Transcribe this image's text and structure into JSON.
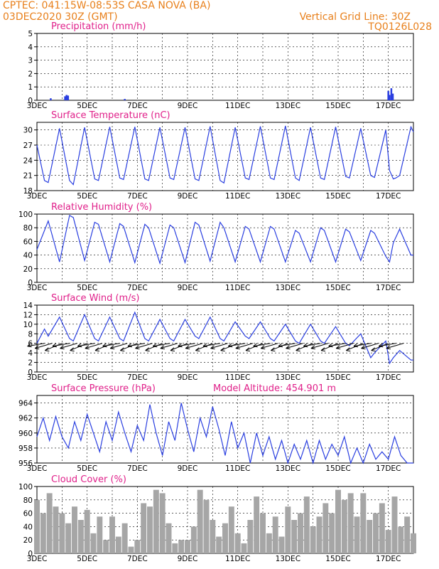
{
  "header": {
    "line1": "CPTEC:   041:15W-08:53S   CASA NOVA (BA)",
    "line2": "03DEC2020 30Z (GMT)",
    "grid_note": "Vertical Grid Line: 30Z",
    "code": "TQ0126L028"
  },
  "colors": {
    "header": "#e8801c",
    "title": "#e0208a",
    "line": "#2a3fe0",
    "cloud": "#a6a6a6",
    "wind_barb": "#000000"
  },
  "x_labels": [
    "3DEC",
    "5DEC",
    "7DEC",
    "9DEC",
    "11DEC",
    "13DEC",
    "15DEC",
    "17DEC"
  ],
  "chart_data": [
    {
      "type": "bar",
      "title": "Precipitation (mm/h)",
      "ylim": [
        0,
        5
      ],
      "yticks": [
        0,
        1,
        2,
        3,
        4,
        5
      ],
      "grid": true,
      "x": [
        3.55,
        4.12,
        4.18,
        4.24,
        6.5,
        17.0,
        17.05,
        17.12,
        17.18
      ],
      "values": [
        0.15,
        0.3,
        0.4,
        0.35,
        0.1,
        0.7,
        0.4,
        0.9,
        0.5
      ]
    },
    {
      "type": "line",
      "title": "Surface Temperature (nC)",
      "ylim": [
        18,
        31.5
      ],
      "yticks": [
        18,
        21,
        24,
        27,
        30
      ],
      "grid": true,
      "x": [
        3.0,
        3.3,
        3.45,
        3.9,
        4.3,
        4.45,
        4.9,
        5.3,
        5.45,
        5.9,
        6.3,
        6.45,
        6.9,
        7.3,
        7.45,
        7.9,
        8.3,
        8.45,
        8.9,
        9.3,
        9.45,
        9.9,
        10.3,
        10.45,
        10.9,
        11.3,
        11.45,
        11.9,
        12.3,
        12.45,
        12.9,
        13.3,
        13.45,
        13.9,
        14.3,
        14.45,
        14.9,
        15.3,
        15.45,
        15.9,
        16.3,
        16.45,
        16.9,
        17.05,
        17.2,
        17.3,
        17.45,
        17.9,
        18.0
      ],
      "y": [
        27.0,
        20.0,
        19.6,
        30.3,
        20.0,
        19.2,
        30.5,
        20.3,
        20.0,
        30.6,
        20.5,
        20.2,
        30.6,
        20.3,
        20.0,
        30.5,
        20.5,
        20.2,
        30.5,
        20.3,
        20.0,
        30.7,
        20.0,
        19.5,
        30.5,
        20.5,
        20.2,
        30.7,
        20.5,
        20.2,
        30.8,
        20.5,
        20.0,
        30.5,
        20.5,
        20.2,
        30.6,
        20.8,
        20.5,
        30.3,
        21.0,
        20.6,
        30.0,
        22.0,
        20.3,
        20.5,
        21.0,
        30.6,
        29.6
      ]
    },
    {
      "type": "line",
      "title": "Relative Humidity (%)",
      "ylim": [
        0,
        100
      ],
      "yticks": [
        0,
        20,
        40,
        60,
        80,
        100
      ],
      "grid": true,
      "x": [
        3.0,
        3.45,
        3.9,
        4.3,
        4.45,
        4.9,
        5.3,
        5.45,
        5.9,
        6.3,
        6.45,
        6.9,
        7.3,
        7.45,
        7.9,
        8.3,
        8.45,
        8.9,
        9.3,
        9.45,
        9.9,
        10.3,
        10.45,
        10.9,
        11.3,
        11.45,
        11.9,
        12.3,
        12.45,
        12.9,
        13.3,
        13.45,
        13.9,
        14.3,
        14.45,
        14.9,
        15.3,
        15.45,
        15.9,
        16.3,
        16.45,
        16.9,
        17.05,
        17.2,
        17.45,
        17.9,
        18.0
      ],
      "y": [
        48,
        90,
        30,
        98,
        95,
        32,
        88,
        85,
        30,
        86,
        82,
        29,
        85,
        80,
        28,
        84,
        80,
        29,
        88,
        84,
        31,
        88,
        80,
        30,
        82,
        78,
        30,
        82,
        78,
        30,
        76,
        72,
        30,
        80,
        76,
        30,
        78,
        74,
        32,
        76,
        72,
        38,
        30,
        58,
        78,
        40,
        40
      ]
    },
    {
      "type": "line",
      "title": "Surface Wind (m/s)",
      "ylim": [
        0,
        14
      ],
      "yticks": [
        0,
        2,
        4,
        6,
        8,
        10,
        12,
        14
      ],
      "grid": true,
      "x": [
        3.0,
        3.3,
        3.45,
        3.9,
        4.3,
        4.45,
        4.9,
        5.3,
        5.45,
        5.9,
        6.3,
        6.45,
        6.9,
        7.3,
        7.45,
        7.9,
        8.3,
        8.45,
        8.9,
        9.3,
        9.45,
        9.9,
        10.3,
        10.45,
        10.9,
        11.3,
        11.45,
        11.9,
        12.3,
        12.45,
        12.9,
        13.3,
        13.45,
        13.9,
        14.3,
        14.45,
        14.9,
        15.3,
        15.45,
        15.9,
        16.3,
        16.45,
        16.9,
        17.05,
        17.2,
        17.45,
        17.9,
        18.0
      ],
      "y": [
        6.0,
        9.0,
        7.5,
        11.5,
        7.0,
        6.5,
        12.0,
        7.0,
        6.5,
        11.5,
        7.0,
        6.5,
        12.5,
        7.0,
        6.5,
        11.0,
        7.0,
        6.5,
        11.0,
        7.5,
        7.0,
        11.5,
        7.0,
        6.5,
        10.5,
        7.5,
        7.0,
        10.5,
        7.0,
        6.5,
        10.0,
        6.5,
        6.0,
        10.0,
        6.5,
        6.0,
        9.5,
        6.0,
        5.5,
        8.0,
        3.0,
        4.0,
        6.5,
        1.8,
        3.0,
        4.5,
        2.5,
        2.5
      ],
      "barbs": [
        3.3,
        3.6,
        4.0,
        4.3,
        4.6,
        5.0,
        5.3,
        5.6,
        6.0,
        6.3,
        6.6,
        7.0,
        7.3,
        7.6,
        8.0,
        8.3,
        8.6,
        9.0,
        9.3,
        9.6,
        10.0,
        10.3,
        10.6,
        11.0,
        11.3,
        11.6,
        12.0,
        12.3,
        12.6,
        13.0,
        13.3,
        13.6,
        14.0,
        14.3,
        14.6,
        15.0,
        15.3,
        15.6,
        16.0,
        16.3,
        16.6,
        17.0,
        17.3,
        17.6
      ]
    },
    {
      "type": "line",
      "title": "Surface Pressure (hPa)",
      "annotation": "Model Altitude: 454.901 m",
      "ylim": [
        956,
        965
      ],
      "yticks": [
        956,
        958,
        960,
        962,
        964
      ],
      "grid": true,
      "x": [
        3.0,
        3.25,
        3.5,
        3.75,
        4.0,
        4.25,
        4.5,
        4.75,
        5.0,
        5.25,
        5.5,
        5.75,
        6.0,
        6.25,
        6.5,
        6.75,
        7.0,
        7.25,
        7.5,
        7.75,
        8.0,
        8.25,
        8.5,
        8.75,
        9.0,
        9.25,
        9.5,
        9.75,
        10.0,
        10.25,
        10.5,
        10.75,
        11.0,
        11.25,
        11.5,
        11.75,
        12.0,
        12.25,
        12.5,
        12.75,
        13.0,
        13.25,
        13.5,
        13.75,
        14.0,
        14.25,
        14.5,
        14.75,
        15.0,
        15.25,
        15.5,
        15.75,
        16.0,
        16.25,
        16.5,
        16.75,
        17.0,
        17.25,
        17.5,
        17.75,
        18.0
      ],
      "y": [
        959.5,
        962.0,
        959.0,
        962.2,
        959.5,
        958.0,
        961.5,
        959.0,
        962.5,
        960.0,
        957.5,
        961.5,
        959.0,
        962.8,
        960.0,
        957.5,
        961.0,
        959.0,
        963.8,
        960.0,
        957.0,
        961.5,
        959.0,
        964.0,
        960.5,
        957.5,
        962.0,
        959.5,
        963.5,
        960.5,
        957.0,
        961.5,
        958.0,
        960.0,
        956.0,
        960.0,
        957.0,
        959.5,
        956.5,
        959.0,
        956.0,
        958.5,
        956.5,
        959.0,
        956.0,
        959.0,
        956.5,
        958.5,
        957.0,
        959.5,
        956.0,
        958.0,
        956.0,
        958.5,
        956.5,
        957.5,
        956.5,
        959.5,
        957.0,
        956.0,
        956.0
      ]
    },
    {
      "type": "bar",
      "title": "Cloud Cover (%)",
      "ylim": [
        0,
        100
      ],
      "yticks": [
        0,
        20,
        40,
        60,
        80,
        100
      ],
      "grid": true,
      "x": [
        3.0,
        3.25,
        3.5,
        3.75,
        4.0,
        4.25,
        4.5,
        4.75,
        5.0,
        5.25,
        5.5,
        5.75,
        6.0,
        6.25,
        6.5,
        6.75,
        7.0,
        7.25,
        7.5,
        7.75,
        8.0,
        8.25,
        8.5,
        8.75,
        9.0,
        9.25,
        9.5,
        9.75,
        10.0,
        10.25,
        10.5,
        10.75,
        11.0,
        11.25,
        11.5,
        11.75,
        12.0,
        12.25,
        12.5,
        12.75,
        13.0,
        13.25,
        13.5,
        13.75,
        14.0,
        14.25,
        14.5,
        14.75,
        15.0,
        15.25,
        15.5,
        15.75,
        16.0,
        16.25,
        16.5,
        16.75,
        17.0,
        17.25,
        17.5,
        17.75,
        18.0
      ],
      "values": [
        80,
        60,
        90,
        70,
        60,
        45,
        70,
        50,
        65,
        30,
        55,
        20,
        55,
        25,
        45,
        10,
        20,
        75,
        70,
        95,
        90,
        45,
        15,
        20,
        20,
        40,
        95,
        80,
        50,
        25,
        45,
        70,
        30,
        15,
        50,
        85,
        60,
        30,
        55,
        25,
        70,
        50,
        60,
        85,
        40,
        55,
        75,
        60,
        95,
        80,
        90,
        55,
        90,
        50,
        60,
        75,
        35,
        85,
        40,
        55,
        30
      ]
    }
  ]
}
